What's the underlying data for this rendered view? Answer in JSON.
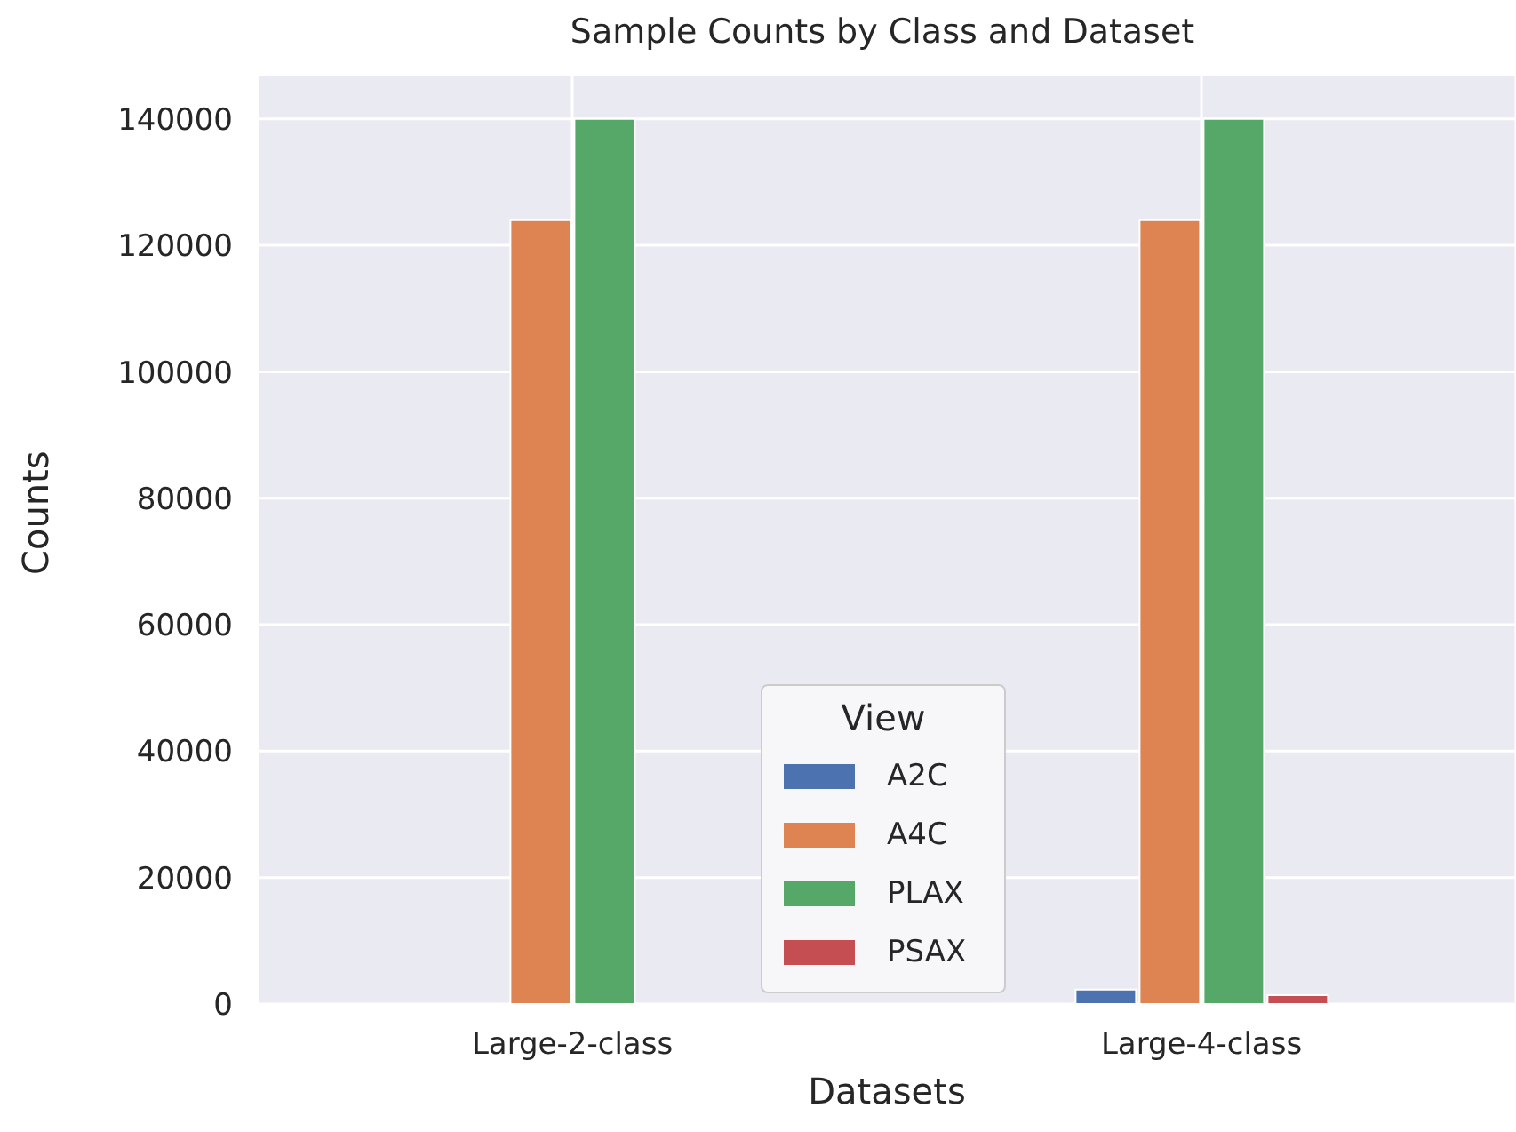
{
  "chart_data": {
    "type": "bar",
    "title": "Sample Counts by Class and Dataset",
    "xlabel": "Datasets",
    "ylabel": "Counts",
    "legend_title": "View",
    "categories": [
      "Large-2-class",
      "Large-4-class"
    ],
    "series": [
      {
        "name": "A2C",
        "color": "#4c72b0",
        "values": [
          0,
          2300
        ]
      },
      {
        "name": "A4C",
        "color": "#dd8452",
        "values": [
          124000,
          124000
        ]
      },
      {
        "name": "PLAX",
        "color": "#55a868",
        "values": [
          140000,
          140000
        ]
      },
      {
        "name": "PSAX",
        "color": "#c44e52",
        "values": [
          0,
          1400
        ]
      }
    ],
    "ylim": [
      0,
      147000
    ],
    "yticks": [
      0,
      20000,
      40000,
      60000,
      80000,
      100000,
      120000,
      140000
    ],
    "grid": true,
    "legend": "bottom"
  }
}
